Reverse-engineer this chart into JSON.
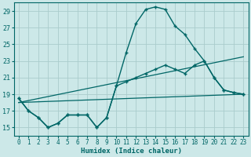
{
  "xlabel": "Humidex (Indice chaleur)",
  "bg_color": "#cce8e8",
  "grid_color": "#aacccc",
  "line_color": "#006666",
  "xlim": [
    -0.5,
    23.5
  ],
  "ylim": [
    14,
    30
  ],
  "yticks": [
    15,
    17,
    19,
    21,
    23,
    25,
    27,
    29
  ],
  "xticks": [
    0,
    1,
    2,
    3,
    4,
    5,
    6,
    7,
    8,
    9,
    10,
    11,
    12,
    13,
    14,
    15,
    16,
    17,
    18,
    19,
    20,
    21,
    22,
    23
  ],
  "series0_x": [
    0,
    1,
    2,
    3,
    4,
    5,
    6,
    7,
    8,
    9,
    10,
    11,
    12,
    13,
    14,
    15,
    16,
    17,
    18,
    19,
    20,
    21,
    22,
    23
  ],
  "series0_y": [
    18.5,
    17.0,
    16.2,
    15.0,
    15.5,
    16.5,
    16.5,
    16.5,
    15.0,
    16.2,
    20.0,
    24.0,
    27.5,
    29.2,
    29.5,
    29.2,
    27.2,
    26.2,
    24.5,
    23.0,
    21.0,
    19.5,
    19.2,
    19.0
  ],
  "series1_x": [
    0,
    1,
    2,
    3,
    4,
    5,
    6,
    7,
    8,
    9,
    10,
    11,
    12,
    13,
    14,
    15,
    16,
    17,
    18,
    19,
    20,
    21,
    22,
    23
  ],
  "series1_y": [
    18.5,
    17.0,
    16.2,
    15.0,
    15.5,
    16.5,
    16.5,
    16.5,
    15.0,
    16.2,
    20.0,
    20.5,
    21.0,
    21.5,
    22.0,
    22.5,
    22.0,
    21.5,
    22.5,
    23.0,
    21.0,
    19.5,
    19.2,
    19.0
  ],
  "line2_x": [
    0,
    23
  ],
  "line2_y": [
    18.0,
    19.0
  ],
  "line3_x": [
    0,
    23
  ],
  "line3_y": [
    18.0,
    23.5
  ]
}
